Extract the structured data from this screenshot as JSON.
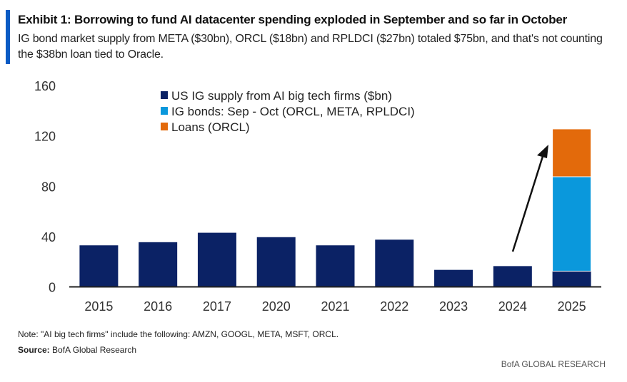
{
  "header": {
    "title": "Exhibit 1:  Borrowing to fund AI datacenter spending exploded in September and so far in October",
    "subtitle": "IG bond market supply from META ($30bn), ORCL ($18bn) and RPLDCI ($27bn) totaled $75bn, and that's not counting the $38bn loan tied to Oracle."
  },
  "chart_data": {
    "type": "bar",
    "stacked": true,
    "categories": [
      "2015",
      "2016",
      "2017",
      "2020",
      "2021",
      "2022",
      "2023",
      "2024",
      "2025"
    ],
    "series": [
      {
        "name": "US IG supply from AI big tech firms ($bn)",
        "color": "#0b2265",
        "values": [
          33,
          35.5,
          43,
          39.5,
          33,
          37.5,
          13.5,
          16.5,
          12.5
        ]
      },
      {
        "name": "IG bonds: Sep - Oct (ORCL, META, RPLDCI)",
        "color": "#0a98dc",
        "values": [
          0,
          0,
          0,
          0,
          0,
          0,
          0,
          0,
          75
        ]
      },
      {
        "name": "Loans (ORCL)",
        "color": "#e36a0b",
        "values": [
          0,
          0,
          0,
          0,
          0,
          0,
          0,
          0,
          38
        ]
      }
    ],
    "ylim": [
      0,
      160
    ],
    "yticks": [
      "0",
      "40",
      "80",
      "120",
      "160"
    ],
    "xlabel": "",
    "ylabel": "",
    "grid": false,
    "legend_position": "top-center",
    "annotation": "arrow from 2024 toward 2025"
  },
  "footer": {
    "note": "Note: \"AI big tech firms\" include the following: AMZN, GOOGL, META, MSFT, ORCL.",
    "source_label": "Source:",
    "source_text": " BofA Global Research",
    "brand": "BofA GLOBAL RESEARCH"
  }
}
